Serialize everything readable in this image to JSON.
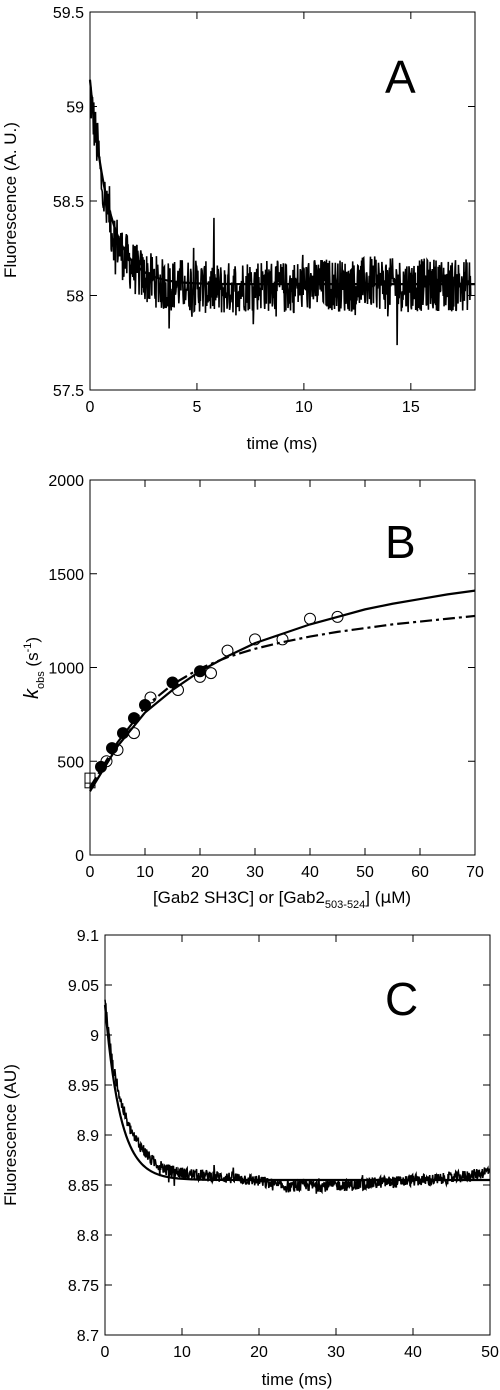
{
  "chart_data": [
    {
      "type": "line",
      "panel_label": "A",
      "xlabel": "time (ms)",
      "ylabel": "Fluorescence (A. U.)",
      "xlim": [
        0,
        18
      ],
      "ylim": [
        57.5,
        59.5
      ],
      "x_ticks": [
        0,
        5,
        10,
        15
      ],
      "y_ticks": [
        57.5,
        58,
        58.5,
        59,
        59.5
      ],
      "x_tick_labels": [
        "0",
        "5",
        "10",
        "15"
      ],
      "y_tick_labels": [
        "57.5",
        "58",
        "58.5",
        "59",
        "59.5"
      ],
      "grid": false,
      "series": [
        {
          "style": "noisy-trace",
          "points": [
            [
              0,
              59.1
            ],
            [
              0.1,
              58.98
            ],
            [
              0.2,
              58.9
            ],
            [
              0.3,
              58.82
            ],
            [
              0.4,
              58.75
            ],
            [
              0.5,
              58.62
            ],
            [
              0.6,
              58.55
            ],
            [
              0.7,
              58.5
            ],
            [
              0.8,
              58.42
            ],
            [
              0.9,
              58.45
            ],
            [
              1.0,
              58.35
            ],
            [
              1.2,
              58.3
            ],
            [
              1.4,
              58.25
            ],
            [
              1.6,
              58.2
            ],
            [
              1.8,
              58.18
            ],
            [
              2.0,
              58.15
            ],
            [
              2.5,
              58.1
            ],
            [
              3.0,
              58.08
            ],
            [
              3.5,
              58.05
            ],
            [
              4,
              58.06
            ],
            [
              5,
              58.05
            ],
            [
              6,
              58.03
            ],
            [
              7,
              58.05
            ],
            [
              8,
              58.06
            ],
            [
              9,
              58.04
            ],
            [
              10,
              58.05
            ],
            [
              11,
              58.06
            ],
            [
              12,
              58.05
            ],
            [
              13,
              58.07
            ],
            [
              14,
              58.06
            ],
            [
              15,
              58.05
            ],
            [
              16,
              58.06
            ],
            [
              17,
              58.05
            ],
            [
              17.8,
              58.06
            ]
          ],
          "noise_amplitude": 0.14
        },
        {
          "style": "fit",
          "equation": {
            "a0": 58.06,
            "a1": 1.08,
            "tau": 0.9
          },
          "x_range": [
            0,
            18
          ]
        }
      ]
    },
    {
      "type": "scatter",
      "panel_label": "B",
      "xlabel_parts": {
        "main": "[Gab2 SH3C] or [Gab2",
        "subscript": "503-524",
        "tail": "] (",
        "mu": "μ",
        "unit_tail": "M)"
      },
      "ylabel_parts": {
        "k": "k",
        "subscript": "obs",
        "unit_open": " (s",
        "superscript": "-1",
        "unit_close": ")"
      },
      "xlim": [
        0,
        70
      ],
      "ylim": [
        0,
        2000
      ],
      "x_ticks": [
        0,
        10,
        20,
        30,
        40,
        50,
        60,
        70
      ],
      "y_ticks": [
        0,
        500,
        1000,
        1500,
        2000
      ],
      "x_tick_labels": [
        "0",
        "10",
        "20",
        "30",
        "40",
        "50",
        "60",
        "70"
      ],
      "y_tick_labels": [
        "0",
        "500",
        "1000",
        "1500",
        "2000"
      ],
      "grid": false,
      "series": [
        {
          "marker": "filled-circle",
          "x": [
            2,
            4,
            6,
            8,
            10,
            15,
            20
          ],
          "y": [
            470,
            570,
            650,
            730,
            800,
            920,
            980
          ]
        },
        {
          "marker": "open-circle",
          "x": [
            3,
            5,
            8,
            11,
            16,
            20,
            22,
            25,
            30,
            35,
            40,
            45
          ],
          "y": [
            500,
            560,
            650,
            840,
            880,
            950,
            970,
            1090,
            1150,
            1150,
            1260,
            1270
          ]
        },
        {
          "marker": "open-square",
          "x": [
            0,
            0
          ],
          "y": [
            385,
            410
          ]
        },
        {
          "style": "fit-solid",
          "x": [
            0,
            5,
            10,
            15,
            20,
            25,
            30,
            35,
            40,
            45,
            50,
            55,
            60,
            65,
            70
          ],
          "y": [
            340,
            580,
            760,
            880,
            980,
            1060,
            1130,
            1180,
            1230,
            1270,
            1310,
            1340,
            1365,
            1390,
            1410
          ]
        },
        {
          "style": "fit-dashed",
          "x": [
            0,
            5,
            10,
            15,
            20,
            25,
            30,
            35,
            40,
            45,
            50,
            55,
            60,
            65,
            70
          ],
          "y": [
            360,
            600,
            790,
            910,
            995,
            1055,
            1100,
            1135,
            1165,
            1190,
            1210,
            1230,
            1245,
            1260,
            1275
          ]
        }
      ]
    },
    {
      "type": "line",
      "panel_label": "C",
      "xlabel": "time (ms)",
      "ylabel": "Fluorescence (AU)",
      "xlim": [
        0,
        50
      ],
      "ylim": [
        8.7,
        9.1
      ],
      "x_ticks": [
        0,
        10,
        20,
        30,
        40,
        50
      ],
      "y_ticks": [
        8.7,
        8.75,
        8.8,
        8.85,
        8.9,
        8.95,
        9,
        9.05,
        9.1
      ],
      "x_tick_labels": [
        "0",
        "10",
        "20",
        "30",
        "40",
        "50"
      ],
      "y_tick_labels": [
        "8.7",
        "8.75",
        "8.8",
        "8.85",
        "8.9",
        "8.95",
        "9",
        "9.05",
        "9.1"
      ],
      "grid": false,
      "series": [
        {
          "style": "noisy-trace",
          "points": [
            [
              0,
              9.035
            ],
            [
              0.5,
              9.0
            ],
            [
              1,
              8.97
            ],
            [
              2,
              8.935
            ],
            [
              3,
              8.91
            ],
            [
              4,
              8.895
            ],
            [
              5,
              8.885
            ],
            [
              6,
              8.875
            ],
            [
              7,
              8.87
            ],
            [
              8,
              8.865
            ],
            [
              10,
              8.862
            ],
            [
              12,
              8.86
            ],
            [
              15,
              8.858
            ],
            [
              18,
              8.856
            ],
            [
              20,
              8.854
            ],
            [
              22,
              8.85
            ],
            [
              24,
              8.848
            ],
            [
              26,
              8.85
            ],
            [
              28,
              8.849
            ],
            [
              30,
              8.85
            ],
            [
              32,
              8.85
            ],
            [
              34,
              8.851
            ],
            [
              36,
              8.853
            ],
            [
              38,
              8.853
            ],
            [
              40,
              8.855
            ],
            [
              42,
              8.855
            ],
            [
              44,
              8.856
            ],
            [
              46,
              8.858
            ],
            [
              48,
              8.86
            ],
            [
              50,
              8.865
            ]
          ],
          "noise_amplitude": 0.006
        },
        {
          "style": "fit",
          "equation": {
            "a0": 8.855,
            "a1": 0.175,
            "tau": 2.0
          },
          "x_range": [
            0,
            50
          ]
        }
      ]
    }
  ]
}
